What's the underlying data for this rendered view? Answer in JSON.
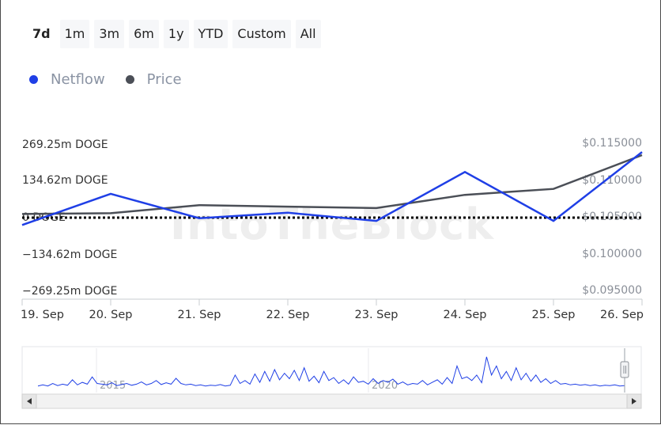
{
  "range_selector": {
    "buttons": [
      {
        "label": "7d",
        "active": true
      },
      {
        "label": "1m",
        "active": false
      },
      {
        "label": "3m",
        "active": false
      },
      {
        "label": "6m",
        "active": false
      },
      {
        "label": "1y",
        "active": false
      },
      {
        "label": "YTD",
        "active": false
      },
      {
        "label": "Custom",
        "active": false
      },
      {
        "label": "All",
        "active": false
      }
    ]
  },
  "watermark": "IntoTheBlock",
  "colors": {
    "netflow": "#1f3fe6",
    "price": "#4b4f57",
    "zero_line": "#000000"
  },
  "chart_data": {
    "type": "line",
    "categories": [
      "19. Sep",
      "20. Sep",
      "21. Sep",
      "22. Sep",
      "23. Sep",
      "24. Sep",
      "25. Sep",
      "26. Sep"
    ],
    "series": [
      {
        "name": "Netflow",
        "axis": "left",
        "unit": "DOGE",
        "values": [
          -27000000,
          87000000,
          -2000000,
          18000000,
          -12000000,
          167000000,
          -12000000,
          240000000
        ]
      },
      {
        "name": "Price",
        "axis": "right",
        "unit": "USD",
        "values": [
          0.1055,
          0.1056,
          0.1067,
          0.1065,
          0.1063,
          0.1081,
          0.1089,
          0.1135
        ]
      }
    ],
    "y_left": {
      "range": [
        -269250000,
        269250000
      ],
      "tick_labels": [
        "269.25m DOGE",
        "134.62m DOGE",
        "0 DOGE",
        "−134.62m DOGE",
        "−269.25m DOGE"
      ]
    },
    "y_right": {
      "range": [
        0.095,
        0.115
      ],
      "tick_labels": [
        "$0.115000",
        "$0.110000",
        "$0.105000",
        "$0.100000",
        "$0.095000"
      ]
    },
    "zero_line": "dotted",
    "legend_position": "top-left",
    "grid": false,
    "navigator": {
      "labels": [
        "2015",
        "2020"
      ],
      "series": [
        0.05,
        0.08,
        0.05,
        0.12,
        0.06,
        0.1,
        0.07,
        0.22,
        0.08,
        0.15,
        0.1,
        0.3,
        0.12,
        0.1,
        0.08,
        0.14,
        0.06,
        0.09,
        0.12,
        0.07,
        0.1,
        0.16,
        0.08,
        0.12,
        0.2,
        0.09,
        0.14,
        0.1,
        0.26,
        0.12,
        0.08,
        0.1,
        0.06,
        0.08,
        0.05,
        0.07,
        0.06,
        0.09,
        0.05,
        0.07,
        0.35,
        0.12,
        0.2,
        0.1,
        0.38,
        0.15,
        0.45,
        0.18,
        0.5,
        0.22,
        0.4,
        0.25,
        0.48,
        0.2,
        0.55,
        0.18,
        0.32,
        0.14,
        0.45,
        0.2,
        0.28,
        0.12,
        0.22,
        0.1,
        0.3,
        0.15,
        0.18,
        0.1,
        0.25,
        0.12,
        0.2,
        0.15,
        0.24,
        0.1,
        0.16,
        0.08,
        0.12,
        0.1,
        0.2,
        0.08,
        0.15,
        0.22,
        0.1,
        0.28,
        0.12,
        0.6,
        0.25,
        0.3,
        0.2,
        0.35,
        0.14,
        0.85,
        0.35,
        0.6,
        0.25,
        0.45,
        0.2,
        0.55,
        0.22,
        0.4,
        0.18,
        0.35,
        0.15,
        0.25,
        0.12,
        0.2,
        0.1,
        0.12,
        0.08,
        0.1,
        0.07,
        0.09,
        0.06,
        0.08,
        0.05,
        0.07,
        0.06,
        0.08,
        0.05,
        0.06
      ]
    }
  }
}
